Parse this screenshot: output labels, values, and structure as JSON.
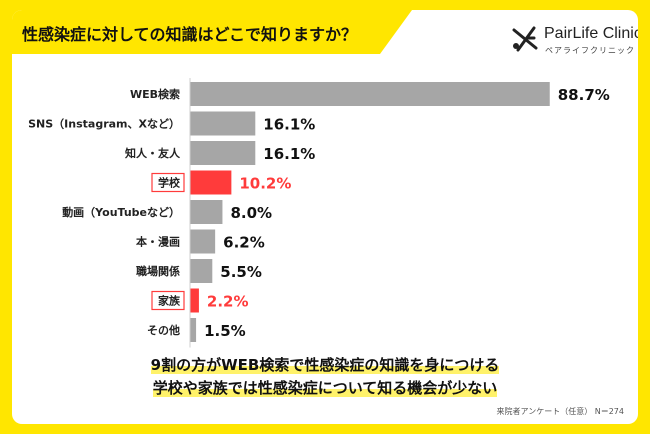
{
  "title": "性感染症に対しての知識はどこで知りますか？",
  "logo": {
    "name": "PairLife Clinic",
    "sub": "ペアライフクリニック",
    "icon": "pairlife-logo-icon"
  },
  "colors": {
    "normal": "#a6a6a6",
    "highlight": "#ff3b3b",
    "highlight_text": "#ff3b3b",
    "frame": "#ffe600"
  },
  "chart_data": {
    "type": "bar",
    "orientation": "horizontal",
    "categories": [
      "WEB検索",
      "SNS（Instagram、Xなど）",
      "知人・友人",
      "学校",
      "動画（YouTubeなど）",
      "本・漫画",
      "職場関係",
      "家族",
      "その他"
    ],
    "values": [
      88.7,
      16.1,
      16.1,
      10.2,
      8.0,
      6.2,
      5.5,
      2.2,
      1.5
    ],
    "value_labels": [
      "88.7%",
      "16.1%",
      "16.1%",
      "10.2%",
      "8.0%",
      "6.2%",
      "5.5%",
      "2.2%",
      "1.5%"
    ],
    "highlighted": [
      "学校",
      "家族"
    ],
    "xlim": [
      0,
      100
    ],
    "grid": false
  },
  "caption": {
    "line1": "9割の方がWEB検索で性感染症の知識を身につける",
    "line2": "学校や家族では性感染症について知る機会が少ない"
  },
  "footnote": "来院者アンケート（任意） N＝274"
}
